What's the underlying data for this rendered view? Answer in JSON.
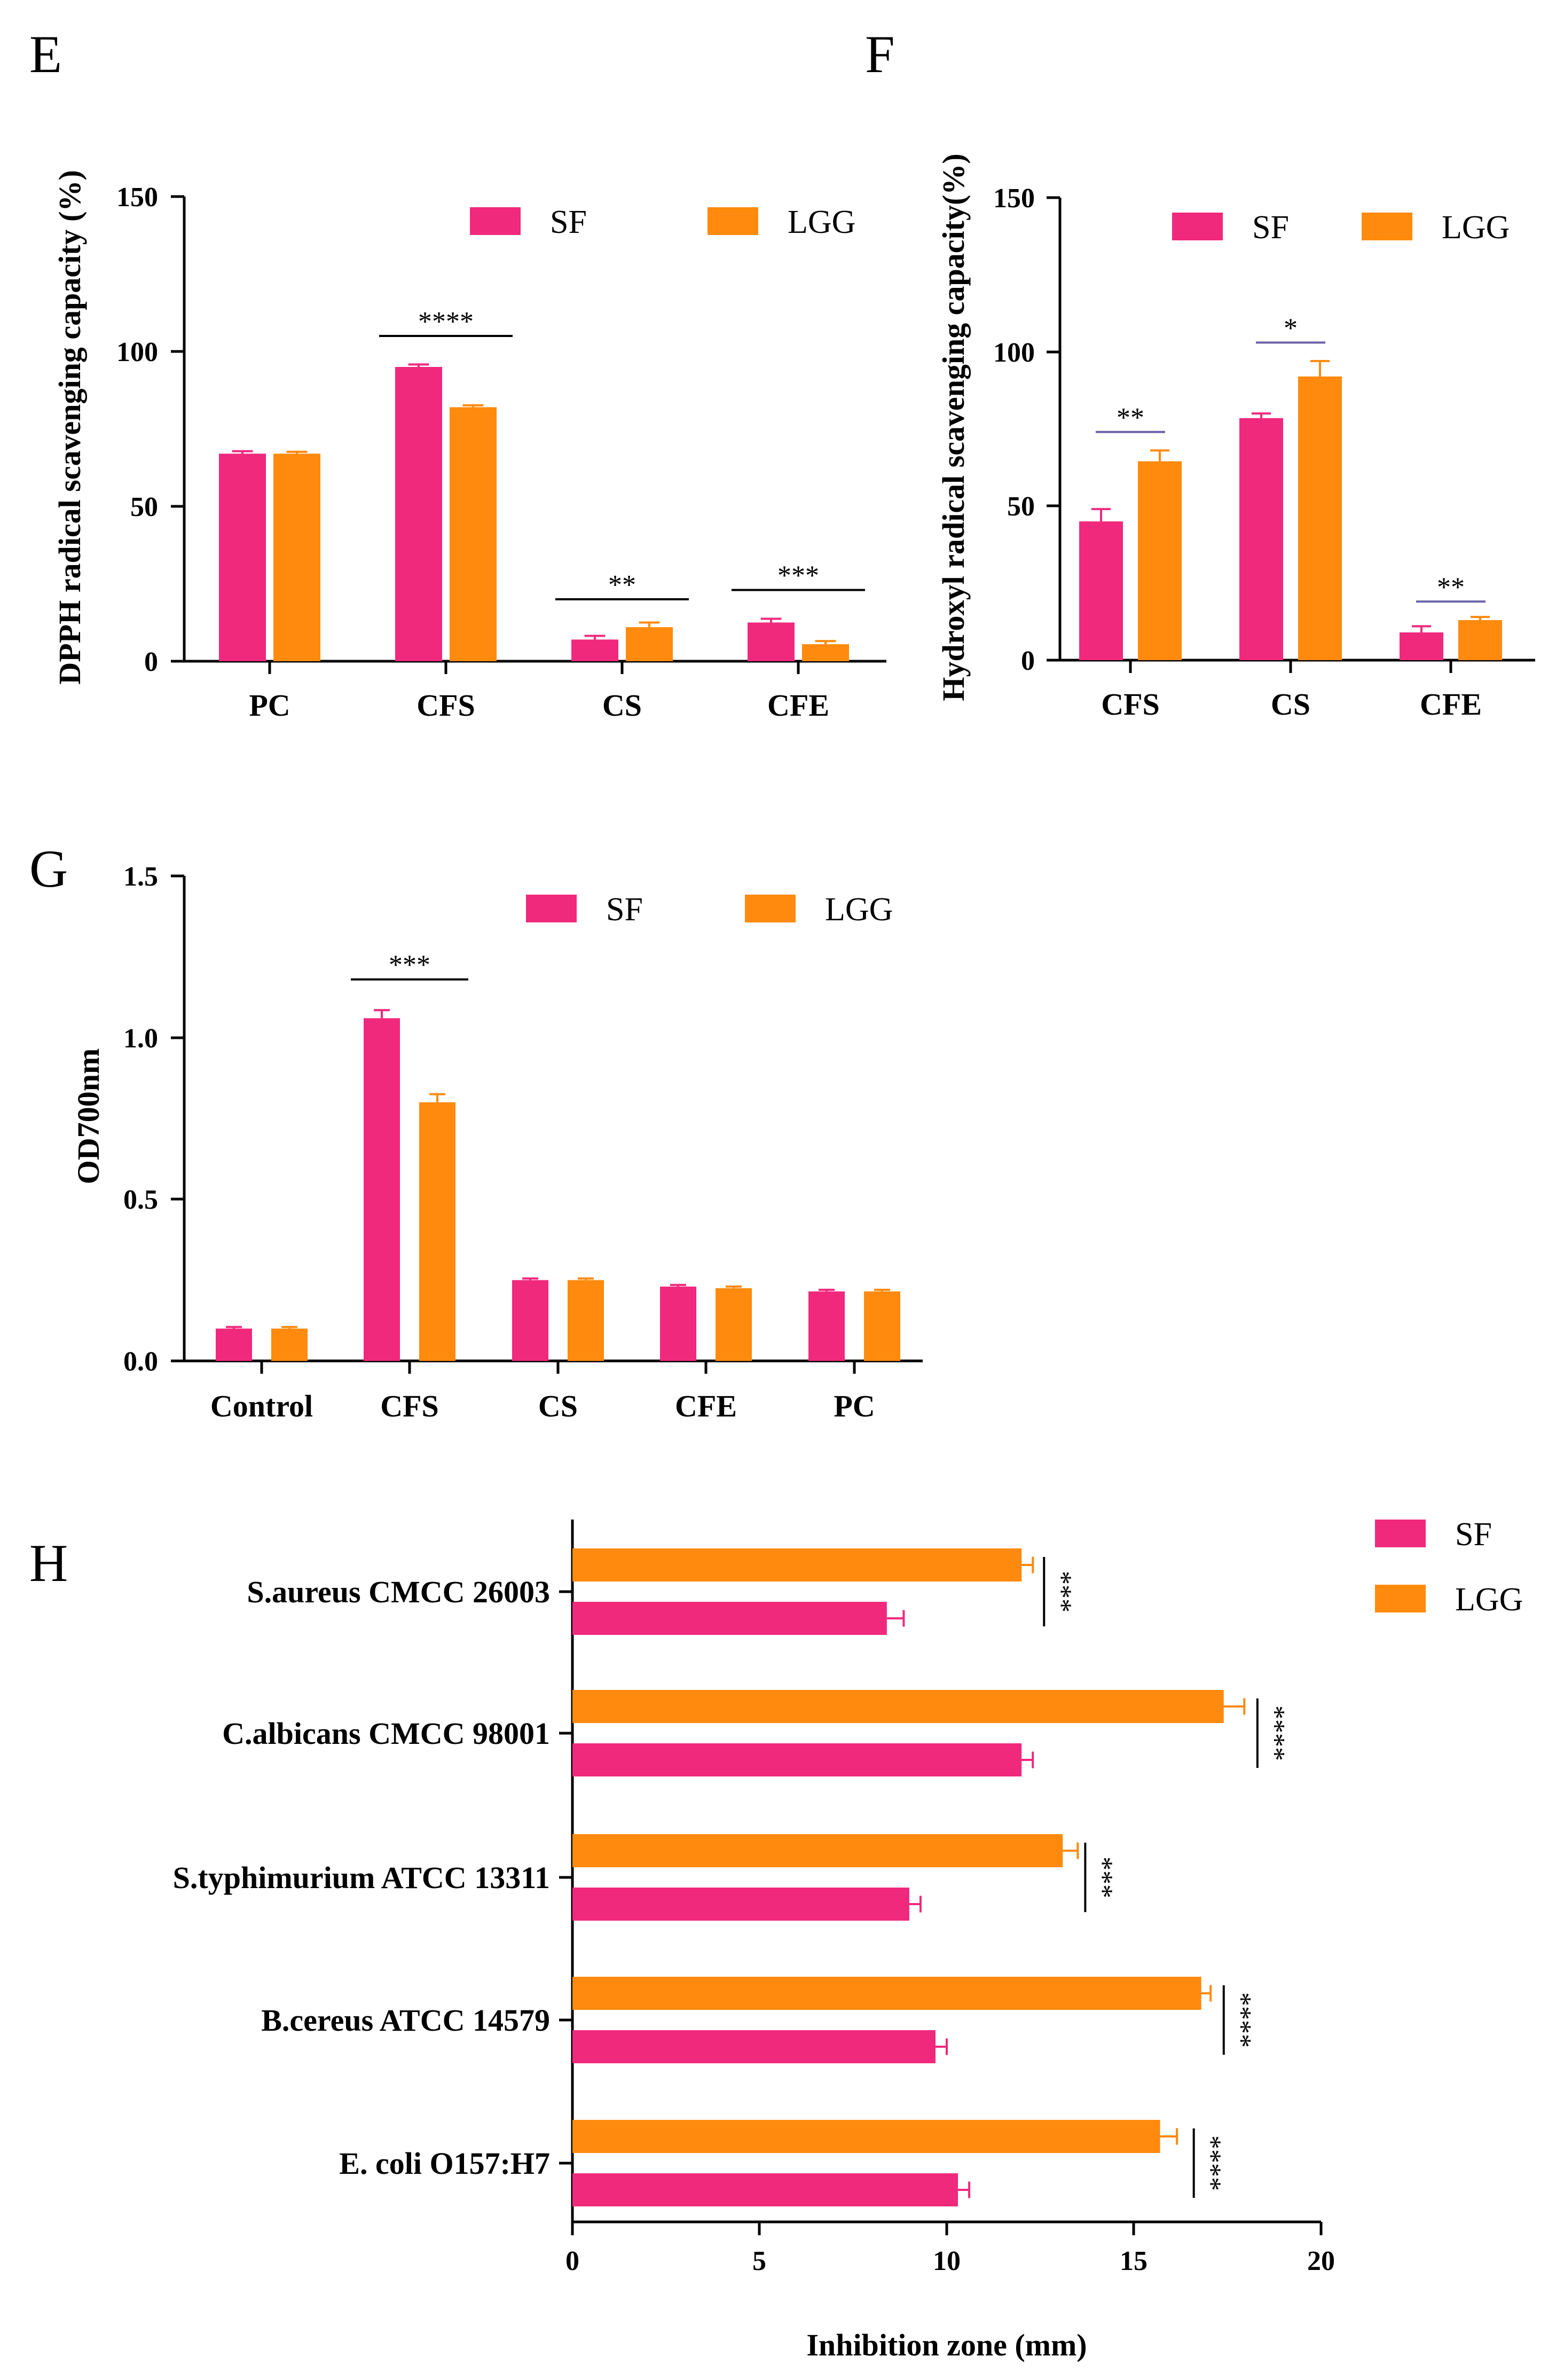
{
  "colors": {
    "SF": "#f0297d",
    "LGG": "#ff8a0d",
    "sig_line_F": "#6b63a8",
    "sig_line": "#000000"
  },
  "chart_data": [
    {
      "panel": "E",
      "type": "bar",
      "orientation": "vertical",
      "title": "",
      "xlabel": "",
      "ylabel": "DPPH  radical scavenging capacity (%)",
      "ylim": [
        0,
        150
      ],
      "yticks": [
        0,
        50,
        100,
        150
      ],
      "ytick_labels": [
        "0",
        "50",
        "100",
        "150"
      ],
      "categories": [
        "PC",
        "CFS",
        "CS",
        "CFE"
      ],
      "legend": [
        "SF",
        "LGG"
      ],
      "legend_position": "top-right",
      "series": [
        {
          "name": "SF",
          "values": [
            67,
            95,
            7,
            12.5
          ],
          "errors": [
            0.8,
            0.8,
            1.2,
            1.2
          ]
        },
        {
          "name": "LGG",
          "values": [
            67,
            82,
            11,
            5.5
          ],
          "errors": [
            0.6,
            0.6,
            1.5,
            1.0
          ]
        }
      ],
      "significance": [
        {
          "category": "CFS",
          "label": "****",
          "y": 105
        },
        {
          "category": "CS",
          "label": "**",
          "y": 20
        },
        {
          "category": "CFE",
          "label": "***",
          "y": 23
        }
      ]
    },
    {
      "panel": "F",
      "type": "bar",
      "orientation": "vertical",
      "title": "",
      "xlabel": "",
      "ylabel": "Hydroxyl radical scavenging capacity(%)",
      "ylim": [
        0,
        150
      ],
      "yticks": [
        0,
        50,
        100,
        150
      ],
      "ytick_labels": [
        "0",
        "50",
        "100",
        "150"
      ],
      "categories": [
        "CFS",
        "CS",
        "CFE"
      ],
      "legend": [
        "SF",
        "LGG"
      ],
      "legend_position": "top-right",
      "series": [
        {
          "name": "SF",
          "values": [
            45,
            78.5,
            9
          ],
          "errors": [
            4,
            1.5,
            2
          ]
        },
        {
          "name": "LGG",
          "values": [
            64.5,
            92,
            13
          ],
          "errors": [
            3.5,
            5,
            1
          ]
        }
      ],
      "significance": [
        {
          "category": "CFS",
          "label": "**",
          "y": 74
        },
        {
          "category": "CS",
          "label": "*",
          "y": 103
        },
        {
          "category": "CFE",
          "label": "**",
          "y": 19
        }
      ]
    },
    {
      "panel": "G",
      "type": "bar",
      "orientation": "vertical",
      "title": "",
      "xlabel": "",
      "ylabel": "OD700nm",
      "ylim": [
        0,
        1.5
      ],
      "yticks": [
        0,
        0.5,
        1.0,
        1.5
      ],
      "ytick_labels": [
        "0.0",
        "0.5",
        "1.0",
        "1.5"
      ],
      "categories": [
        "Control",
        "CFS",
        "CS",
        "CFE",
        "PC"
      ],
      "legend": [
        "SF",
        "LGG"
      ],
      "legend_position": "top-right",
      "series": [
        {
          "name": "SF",
          "values": [
            0.1,
            1.06,
            0.25,
            0.23,
            0.215
          ],
          "errors": [
            0.005,
            0.025,
            0.005,
            0.005,
            0.005
          ]
        },
        {
          "name": "LGG",
          "values": [
            0.1,
            0.8,
            0.25,
            0.225,
            0.215
          ],
          "errors": [
            0.005,
            0.025,
            0.005,
            0.005,
            0.005
          ]
        }
      ],
      "significance": [
        {
          "category": "CFS",
          "label": "***",
          "y": 1.18
        }
      ]
    },
    {
      "panel": "H",
      "type": "bar",
      "orientation": "horizontal",
      "title": "",
      "ylabel": "",
      "xlabel": "Inhibition zone (mm)",
      "xlim": [
        0,
        20
      ],
      "xticks": [
        0,
        5,
        10,
        15,
        20
      ],
      "xtick_labels": [
        "0",
        "5",
        "10",
        "15",
        "20"
      ],
      "categories": [
        "S.aureus CMCC 26003",
        "C.albicans CMCC 98001",
        "S.typhimurium ATCC 13311",
        "B.cereus ATCC 14579",
        "E. coli O157:H7"
      ],
      "legend": [
        "SF",
        "LGG"
      ],
      "legend_position": "top-right",
      "series": [
        {
          "name": "SF",
          "values": [
            8.4,
            12,
            9,
            9.7,
            10.3
          ],
          "errors": [
            0.45,
            0.3,
            0.3,
            0.3,
            0.3
          ]
        },
        {
          "name": "LGG",
          "values": [
            12,
            17.4,
            13.1,
            16.8,
            15.7
          ],
          "errors": [
            0.3,
            0.55,
            0.4,
            0.25,
            0.45
          ]
        }
      ],
      "significance": [
        {
          "category": "S.aureus CMCC 26003",
          "label": "***",
          "x": 12.6
        },
        {
          "category": "C.albicans CMCC 98001",
          "label": "****",
          "x": 18.3
        },
        {
          "category": "S.typhimurium ATCC 13311",
          "label": "***",
          "x": 13.7
        },
        {
          "category": "B.cereus ATCC 14579",
          "label": "****",
          "x": 17.4
        },
        {
          "category": "E. coli O157:H7",
          "label": "****",
          "x": 16.6
        }
      ]
    }
  ]
}
